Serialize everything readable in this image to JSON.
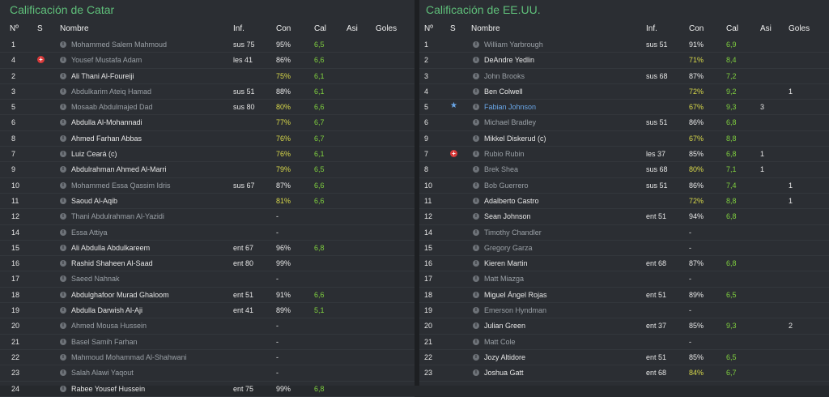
{
  "left": {
    "title": "Calificación de Catar",
    "headers": {
      "num": "Nº",
      "s": "S",
      "name": "Nombre",
      "inf": "Inf.",
      "con": "Con",
      "cal": "Cal",
      "asi": "Asi",
      "goles": "Goles"
    },
    "rows": [
      {
        "num": "1",
        "s": "",
        "name": "Mohammed Salem Mahmoud",
        "dim": true,
        "inf": "sus 75",
        "con": "95%",
        "cal": "6,5",
        "asi": "",
        "goles": ""
      },
      {
        "num": "4",
        "s": "red-cross-icon",
        "name": "Yousef Mustafa Adam",
        "dim": true,
        "inf": "les 41",
        "con": "86%",
        "cal": "6,6",
        "asi": "",
        "goles": ""
      },
      {
        "num": "2",
        "s": "",
        "name": "Ali Thani Al-Foureiji",
        "dim": false,
        "inf": "",
        "con": "75%",
        "cal": "6,1",
        "asi": "",
        "goles": ""
      },
      {
        "num": "3",
        "s": "",
        "name": "Abdulkarim Ateiq Hamad",
        "dim": true,
        "inf": "sus 51",
        "con": "88%",
        "cal": "6,1",
        "asi": "",
        "goles": ""
      },
      {
        "num": "5",
        "s": "",
        "name": "Mosaab Abdulmajed Dad",
        "dim": true,
        "inf": "sus 80",
        "con": "80%",
        "cal": "6,6",
        "asi": "",
        "goles": ""
      },
      {
        "num": "6",
        "s": "",
        "name": "Abdulla Al-Mohannadi",
        "dim": false,
        "inf": "",
        "con": "77%",
        "cal": "6,7",
        "asi": "",
        "goles": ""
      },
      {
        "num": "8",
        "s": "",
        "name": "Ahmed Farhan Abbas",
        "dim": false,
        "inf": "",
        "con": "76%",
        "cal": "6,7",
        "asi": "",
        "goles": ""
      },
      {
        "num": "7",
        "s": "",
        "name": "Luiz Ceará (c)",
        "dim": false,
        "inf": "",
        "con": "76%",
        "cal": "6,1",
        "asi": "",
        "goles": ""
      },
      {
        "num": "9",
        "s": "",
        "name": "Abdulrahman Ahmed Al-Marri",
        "dim": false,
        "inf": "",
        "con": "79%",
        "cal": "6,5",
        "asi": "",
        "goles": ""
      },
      {
        "num": "10",
        "s": "",
        "name": "Mohammed Essa Qassim Idris",
        "dim": true,
        "inf": "sus 67",
        "con": "87%",
        "cal": "6,6",
        "asi": "",
        "goles": ""
      },
      {
        "num": "11",
        "s": "",
        "name": "Saoud Al-Aqib",
        "dim": false,
        "inf": "",
        "con": "81%",
        "cal": "6,6",
        "asi": "",
        "goles": ""
      },
      {
        "num": "12",
        "s": "",
        "name": "Thani Abdulrahman Al-Yazidi",
        "dim": true,
        "inf": "",
        "con": "-",
        "cal": "",
        "asi": "",
        "goles": ""
      },
      {
        "num": "14",
        "s": "",
        "name": "Essa Attiya",
        "dim": true,
        "inf": "",
        "con": "-",
        "cal": "",
        "asi": "",
        "goles": ""
      },
      {
        "num": "15",
        "s": "",
        "name": "Ali Abdulla Abdulkareem",
        "dim": false,
        "inf": "ent 67",
        "con": "96%",
        "cal": "6,8",
        "asi": "",
        "goles": ""
      },
      {
        "num": "16",
        "s": "",
        "name": "Rashid Shaheen Al-Saad",
        "dim": false,
        "inf": "ent 80",
        "con": "99%",
        "cal": "",
        "asi": "",
        "goles": ""
      },
      {
        "num": "17",
        "s": "",
        "name": "Saeed Nahnak",
        "dim": true,
        "inf": "",
        "con": "-",
        "cal": "",
        "asi": "",
        "goles": ""
      },
      {
        "num": "18",
        "s": "",
        "name": "Abdulghafoor Murad Ghaloom",
        "dim": false,
        "inf": "ent 51",
        "con": "91%",
        "cal": "6,6",
        "asi": "",
        "goles": ""
      },
      {
        "num": "19",
        "s": "",
        "name": "Abdulla Darwish Al-Aji",
        "dim": false,
        "inf": "ent 41",
        "con": "89%",
        "cal": "5,1",
        "asi": "",
        "goles": ""
      },
      {
        "num": "20",
        "s": "",
        "name": "Ahmed Mousa Hussein",
        "dim": true,
        "inf": "",
        "con": "-",
        "cal": "",
        "asi": "",
        "goles": ""
      },
      {
        "num": "21",
        "s": "",
        "name": "Basel Samih Farhan",
        "dim": true,
        "inf": "",
        "con": "-",
        "cal": "",
        "asi": "",
        "goles": ""
      },
      {
        "num": "22",
        "s": "",
        "name": "Mahmoud Mohammad Al-Shahwani",
        "dim": true,
        "inf": "",
        "con": "-",
        "cal": "",
        "asi": "",
        "goles": ""
      },
      {
        "num": "23",
        "s": "",
        "name": "Salah Alawi Yaqout",
        "dim": true,
        "inf": "",
        "con": "-",
        "cal": "",
        "asi": "",
        "goles": ""
      },
      {
        "num": "24",
        "s": "",
        "name": "Rabee Yousef Hussein",
        "dim": false,
        "inf": "ent 75",
        "con": "99%",
        "cal": "6,8",
        "asi": "",
        "goles": ""
      }
    ]
  },
  "right": {
    "title": "Calificación de EE.UU.",
    "headers": {
      "num": "Nº",
      "s": "S",
      "name": "Nombre",
      "inf": "Inf.",
      "con": "Con",
      "cal": "Cal",
      "asi": "Asi",
      "goles": "Goles"
    },
    "rows": [
      {
        "num": "1",
        "s": "",
        "name": "William Yarbrough",
        "dim": true,
        "inf": "sus 51",
        "con": "91%",
        "cal": "6,9",
        "asi": "",
        "goles": ""
      },
      {
        "num": "2",
        "s": "",
        "name": "DeAndre Yedlin",
        "dim": false,
        "inf": "",
        "con": "71%",
        "cal": "8,4",
        "asi": "",
        "goles": ""
      },
      {
        "num": "3",
        "s": "",
        "name": "John Brooks",
        "dim": true,
        "inf": "sus 68",
        "con": "87%",
        "cal": "7,2",
        "asi": "",
        "goles": ""
      },
      {
        "num": "4",
        "s": "",
        "name": "Ben Colwell",
        "dim": false,
        "inf": "",
        "con": "72%",
        "cal": "9,2",
        "asi": "",
        "goles": "1"
      },
      {
        "num": "5",
        "s": "star-icon",
        "name": "Fabian Johnson",
        "dim": false,
        "blue": true,
        "inf": "",
        "con": "67%",
        "cal": "9,3",
        "asi": "3",
        "goles": ""
      },
      {
        "num": "6",
        "s": "",
        "name": "Michael Bradley",
        "dim": true,
        "inf": "sus 51",
        "con": "86%",
        "cal": "6,8",
        "asi": "",
        "goles": ""
      },
      {
        "num": "9",
        "s": "",
        "name": "Mikkel Diskerud (c)",
        "dim": false,
        "inf": "",
        "con": "67%",
        "cal": "8,8",
        "asi": "",
        "goles": ""
      },
      {
        "num": "7",
        "s": "red-cross-icon",
        "name": "Rubio Rubin",
        "dim": true,
        "inf": "les 37",
        "con": "85%",
        "cal": "6,8",
        "asi": "1",
        "goles": ""
      },
      {
        "num": "8",
        "s": "",
        "name": "Brek Shea",
        "dim": true,
        "inf": "sus 68",
        "con": "80%",
        "cal": "7,1",
        "asi": "1",
        "goles": ""
      },
      {
        "num": "10",
        "s": "",
        "name": "Bob Guerrero",
        "dim": true,
        "inf": "sus 51",
        "con": "86%",
        "cal": "7,4",
        "asi": "",
        "goles": "1"
      },
      {
        "num": "11",
        "s": "",
        "name": "Adalberto Castro",
        "dim": false,
        "inf": "",
        "con": "72%",
        "cal": "8,8",
        "asi": "",
        "goles": "1"
      },
      {
        "num": "12",
        "s": "",
        "name": "Sean Johnson",
        "dim": false,
        "inf": "ent 51",
        "con": "94%",
        "cal": "6,8",
        "asi": "",
        "goles": ""
      },
      {
        "num": "14",
        "s": "",
        "name": "Timothy Chandler",
        "dim": true,
        "inf": "",
        "con": "-",
        "cal": "",
        "asi": "",
        "goles": ""
      },
      {
        "num": "15",
        "s": "",
        "name": "Gregory Garza",
        "dim": true,
        "inf": "",
        "con": "-",
        "cal": "",
        "asi": "",
        "goles": ""
      },
      {
        "num": "16",
        "s": "",
        "name": "Kieren Martin",
        "dim": false,
        "inf": "ent 68",
        "con": "87%",
        "cal": "6,8",
        "asi": "",
        "goles": ""
      },
      {
        "num": "17",
        "s": "",
        "name": "Matt Miazga",
        "dim": true,
        "inf": "",
        "con": "-",
        "cal": "",
        "asi": "",
        "goles": ""
      },
      {
        "num": "18",
        "s": "",
        "name": "Miguel Ángel Rojas",
        "dim": false,
        "inf": "ent 51",
        "con": "89%",
        "cal": "6,5",
        "asi": "",
        "goles": ""
      },
      {
        "num": "19",
        "s": "",
        "name": "Emerson Hyndman",
        "dim": true,
        "inf": "",
        "con": "-",
        "cal": "",
        "asi": "",
        "goles": ""
      },
      {
        "num": "20",
        "s": "",
        "name": "Julian Green",
        "dim": false,
        "inf": "ent 37",
        "con": "85%",
        "cal": "9,3",
        "asi": "",
        "goles": "2"
      },
      {
        "num": "21",
        "s": "",
        "name": "Matt Cole",
        "dim": true,
        "inf": "",
        "con": "-",
        "cal": "",
        "asi": "",
        "goles": ""
      },
      {
        "num": "22",
        "s": "",
        "name": "Jozy Altidore",
        "dim": false,
        "inf": "ent 51",
        "con": "85%",
        "cal": "6,5",
        "asi": "",
        "goles": ""
      },
      {
        "num": "23",
        "s": "",
        "name": "Joshua Gatt",
        "dim": false,
        "inf": "ent 68",
        "con": "84%",
        "cal": "6,7",
        "asi": "",
        "goles": ""
      }
    ]
  }
}
